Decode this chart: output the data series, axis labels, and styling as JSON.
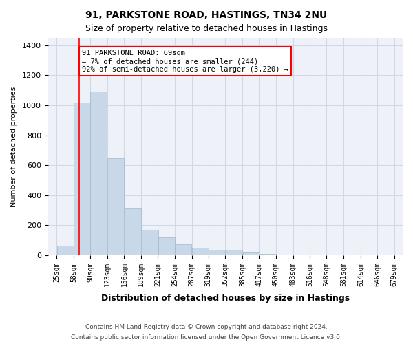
{
  "title1": "91, PARKSTONE ROAD, HASTINGS, TN34 2NU",
  "title2": "Size of property relative to detached houses in Hastings",
  "xlabel": "Distribution of detached houses by size in Hastings",
  "ylabel": "Number of detached properties",
  "footnote1": "Contains HM Land Registry data © Crown copyright and database right 2024.",
  "footnote2": "Contains public sector information licensed under the Open Government Licence v3.0.",
  "annotation_title": "91 PARKSTONE ROAD: 69sqm",
  "annotation_line1": "← 7% of detached houses are smaller (244)",
  "annotation_line2": "92% of semi-detached houses are larger (3,220) →",
  "bar_color": "#c8d8e8",
  "bar_edge_color": "#a0b8cc",
  "red_line_x": 69,
  "bins": [
    25,
    58,
    90,
    123,
    156,
    189,
    221,
    254,
    287,
    319,
    352,
    385,
    417,
    450,
    483,
    516,
    548,
    581,
    614,
    646,
    679
  ],
  "bin_labels": [
    "25sqm",
    "58sqm",
    "90sqm",
    "123sqm",
    "156sqm",
    "189sqm",
    "221sqm",
    "254sqm",
    "287sqm",
    "319sqm",
    "352sqm",
    "385sqm",
    "417sqm",
    "450sqm",
    "483sqm",
    "516sqm",
    "548sqm",
    "581sqm",
    "614sqm",
    "646sqm",
    "679sqm"
  ],
  "values": [
    65,
    1020,
    1090,
    645,
    310,
    170,
    120,
    75,
    50,
    35,
    35,
    20,
    10,
    5,
    3,
    2,
    1,
    1,
    1,
    0
  ],
  "ylim": [
    0,
    1450
  ],
  "yticks": [
    0,
    200,
    400,
    600,
    800,
    1000,
    1200,
    1400
  ],
  "grid_color": "#d0d8e8",
  "background_color": "#eef2f8",
  "plot_bg_color": "#eef2f8"
}
